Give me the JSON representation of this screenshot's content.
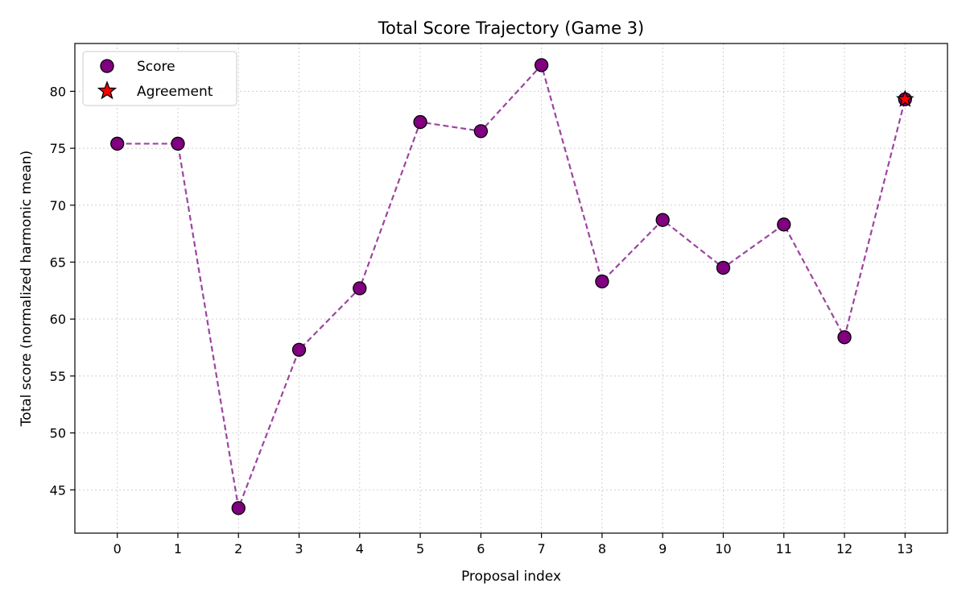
{
  "chart_data": {
    "type": "line",
    "title": "Total Score Trajectory (Game 3)",
    "xlabel": "Proposal index",
    "ylabel": "Total score (normalized harmonic mean)",
    "x": [
      0,
      1,
      2,
      3,
      4,
      5,
      6,
      7,
      8,
      9,
      10,
      11,
      12,
      13
    ],
    "xlim": [
      -0.7,
      13.7
    ],
    "ylim": [
      41.2,
      84.2
    ],
    "yticks": [
      45,
      50,
      55,
      60,
      65,
      70,
      75,
      80
    ],
    "grid": true,
    "legend_position": "top-left",
    "series": [
      {
        "name": "Score",
        "values": [
          75.4,
          75.4,
          43.4,
          57.3,
          62.7,
          77.3,
          76.5,
          82.3,
          63.3,
          68.7,
          64.5,
          68.3,
          58.4,
          79.3
        ],
        "line_color": "#9c45a0",
        "marker_color": "#800080"
      }
    ],
    "agreement": {
      "name": "Agreement",
      "x": 13,
      "y": 79.3,
      "color": "#ff0000"
    }
  }
}
